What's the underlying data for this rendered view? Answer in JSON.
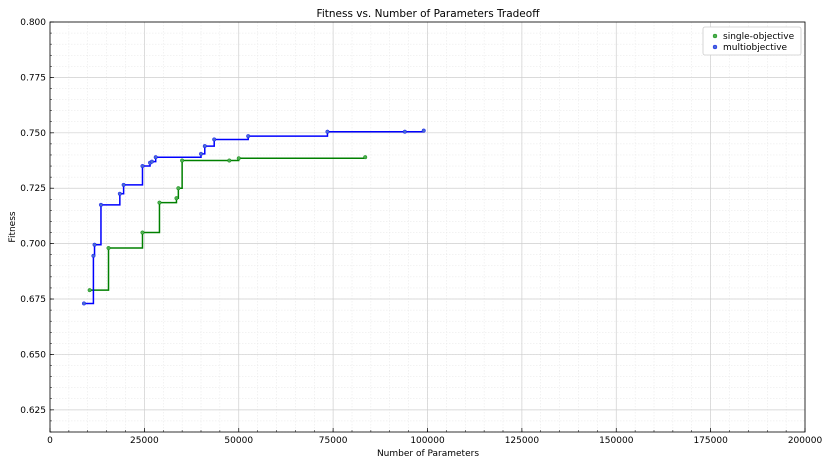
{
  "chart_data": {
    "type": "line",
    "step": true,
    "title": "Fitness vs. Number of Parameters Tradeoff",
    "xlabel": "Number of Parameters",
    "ylabel": "Fitness",
    "xlim": [
      0,
      200000
    ],
    "ylim": [
      0.615,
      0.8
    ],
    "xticks": [
      0,
      25000,
      50000,
      75000,
      100000,
      125000,
      150000,
      175000,
      200000
    ],
    "yticks": [
      0.625,
      0.65,
      0.675,
      0.7,
      0.725,
      0.75,
      0.775,
      0.8
    ],
    "xtick_labels": [
      "0",
      "25000",
      "50000",
      "75000",
      "100000",
      "125000",
      "150000",
      "175000",
      "200000"
    ],
    "ytick_labels": [
      "0.625",
      "0.650",
      "0.675",
      "0.700",
      "0.725",
      "0.750",
      "0.775",
      "0.800"
    ],
    "grid": true,
    "minor_grid": true,
    "legend_position": "top-right",
    "series": [
      {
        "name": "single-objective",
        "color": "#008000",
        "marker_color": "#4caf50",
        "x": [
          10500,
          15500,
          24500,
          29000,
          33500,
          34000,
          35000,
          47500,
          50000,
          83500
        ],
        "y": [
          0.679,
          0.698,
          0.705,
          0.7185,
          0.7205,
          0.725,
          0.7375,
          0.7375,
          0.7385,
          0.739
        ]
      },
      {
        "name": "multiobjective",
        "color": "#0000ff",
        "marker_color": "#4a6cd4",
        "x": [
          9000,
          11500,
          11800,
          13500,
          18500,
          19500,
          24500,
          26500,
          27000,
          28000,
          40000,
          41000,
          43500,
          52500,
          73500,
          94000,
          99000
        ],
        "y": [
          0.673,
          0.6945,
          0.6995,
          0.7175,
          0.7225,
          0.7265,
          0.735,
          0.7365,
          0.737,
          0.739,
          0.7405,
          0.744,
          0.747,
          0.7485,
          0.7505,
          0.7505,
          0.751
        ]
      }
    ]
  }
}
